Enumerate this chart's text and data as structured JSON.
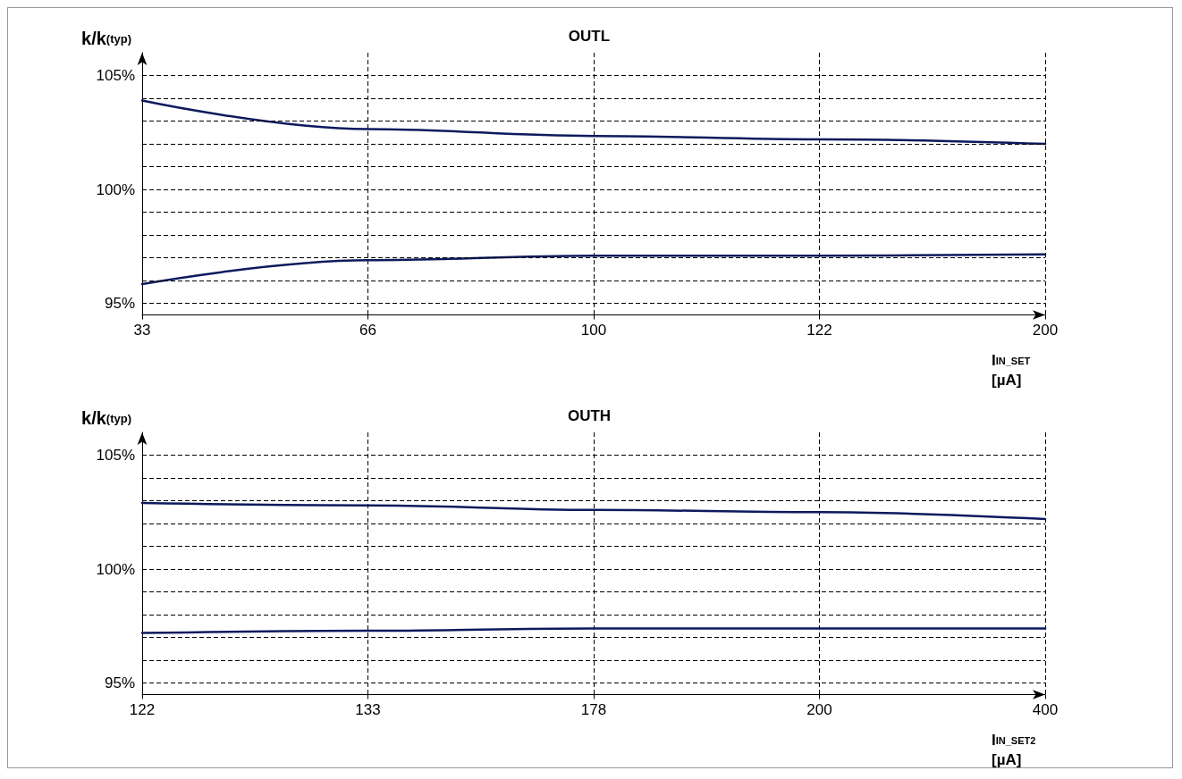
{
  "chart_data": [
    {
      "type": "line",
      "title": "OUTL",
      "ylabel": "k/k$_{(typ)}$",
      "xlabel": "I$_{IN_SET}$\n[µA]",
      "categories": [
        "33",
        "66",
        "100",
        "122",
        "200"
      ],
      "series": [
        {
          "color": "#0d1a5e",
          "values": [
            103.9,
            102.65,
            102.35,
            102.2,
            102.0
          ]
        },
        {
          "color": "#0d1a5e",
          "values": [
            95.85,
            96.9,
            97.1,
            97.1,
            97.15
          ]
        }
      ],
      "ylim": [
        94.5,
        106
      ],
      "yticks": [
        {
          "value": 95,
          "label": "95%"
        },
        {
          "value": 96,
          "label": null
        },
        {
          "value": 97,
          "label": null
        },
        {
          "value": 98,
          "label": null
        },
        {
          "value": 99,
          "label": null
        },
        {
          "value": 100,
          "label": "100%"
        },
        {
          "value": 101,
          "label": null
        },
        {
          "value": 102,
          "label": null
        },
        {
          "value": 103,
          "label": null
        },
        {
          "value": 104,
          "label": null
        },
        {
          "value": 105,
          "label": "105%"
        }
      ],
      "grid": true,
      "line_style": "solid"
    },
    {
      "type": "line",
      "title": "OUTH",
      "ylabel": "k/k$_{(typ)}$",
      "xlabel": "I$_{IN_SET2}$\n[µA]",
      "categories": [
        "122",
        "133",
        "178",
        "200",
        "400"
      ],
      "series": [
        {
          "color": "#0d1a5e",
          "values": [
            102.9,
            102.8,
            102.6,
            102.5,
            102.2
          ]
        },
        {
          "color": "#0d1a5e",
          "values": [
            97.2,
            97.3,
            97.4,
            97.4,
            97.4
          ]
        }
      ],
      "ylim": [
        94.5,
        106
      ],
      "yticks": [
        {
          "value": 95,
          "label": "95%"
        },
        {
          "value": 96,
          "label": null
        },
        {
          "value": 97,
          "label": null
        },
        {
          "value": 98,
          "label": null
        },
        {
          "value": 99,
          "label": null
        },
        {
          "value": 100,
          "label": "100%"
        },
        {
          "value": 101,
          "label": null
        },
        {
          "value": 102,
          "label": null
        },
        {
          "value": 103,
          "label": null
        },
        {
          "value": 104,
          "label": null
        },
        {
          "value": 105,
          "label": "105%"
        }
      ],
      "grid": true,
      "line_style": "solid"
    }
  ]
}
